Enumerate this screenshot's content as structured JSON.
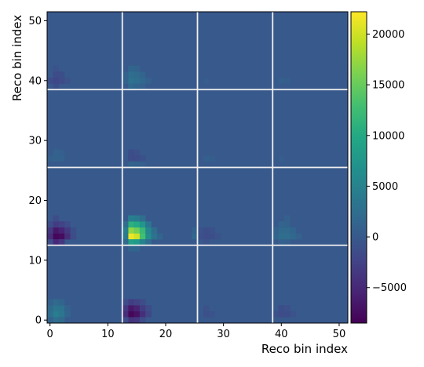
{
  "chart_data": {
    "type": "heatmap",
    "xlabel": "Reco bin index",
    "ylabel": "Reco bin index",
    "xlim": [
      -0.5,
      51.5
    ],
    "ylim": [
      -0.5,
      51.5
    ],
    "x_ticks": [
      0,
      10,
      20,
      30,
      40,
      50
    ],
    "y_ticks": [
      0,
      10,
      20,
      30,
      40,
      50
    ],
    "block_boundaries": [
      12.5,
      25.5,
      38.5
    ],
    "grid_line_color": "#f0f0f0",
    "colormap": "viridis",
    "background_value": 0,
    "colorbar": {
      "range": [
        -8500,
        22200
      ],
      "ticks": [
        -5000,
        0,
        5000,
        10000,
        15000,
        20000
      ]
    },
    "cells": [
      {
        "x": 14,
        "y": 14,
        "v": 21500
      },
      {
        "x": 15,
        "y": 14,
        "v": 20000
      },
      {
        "x": 14,
        "y": 15,
        "v": 17000
      },
      {
        "x": 15,
        "y": 15,
        "v": 15500
      },
      {
        "x": 16,
        "y": 14,
        "v": 13000
      },
      {
        "x": 16,
        "y": 15,
        "v": 12000
      },
      {
        "x": 14,
        "y": 16,
        "v": 11000
      },
      {
        "x": 15,
        "y": 16,
        "v": 10000
      },
      {
        "x": 14,
        "y": 13,
        "v": 9000
      },
      {
        "x": 15,
        "y": 13,
        "v": 8000
      },
      {
        "x": 16,
        "y": 16,
        "v": 7500
      },
      {
        "x": 17,
        "y": 14,
        "v": 6500
      },
      {
        "x": 17,
        "y": 15,
        "v": 5500
      },
      {
        "x": 16,
        "y": 13,
        "v": 5000
      },
      {
        "x": 13,
        "y": 15,
        "v": 4500
      },
      {
        "x": 13,
        "y": 14,
        "v": 4000
      },
      {
        "x": 14,
        "y": 17,
        "v": 4500
      },
      {
        "x": 15,
        "y": 17,
        "v": 4000
      },
      {
        "x": 17,
        "y": 16,
        "v": 3500
      },
      {
        "x": 18,
        "y": 14,
        "v": 3000
      },
      {
        "x": 18,
        "y": 15,
        "v": 2500
      },
      {
        "x": 13,
        "y": 16,
        "v": 2500
      },
      {
        "x": 16,
        "y": 17,
        "v": 2500
      },
      {
        "x": 17,
        "y": 13,
        "v": 2500
      },
      {
        "x": 13,
        "y": 13,
        "v": 2000
      },
      {
        "x": 14,
        "y": 12,
        "v": 1500
      },
      {
        "x": 15,
        "y": 12,
        "v": 1500
      },
      {
        "x": 19,
        "y": 14,
        "v": 1500
      },
      {
        "x": 1,
        "y": 14,
        "v": -8000
      },
      {
        "x": 2,
        "y": 14,
        "v": -7500
      },
      {
        "x": 1,
        "y": 15,
        "v": -6500
      },
      {
        "x": 2,
        "y": 15,
        "v": -5500
      },
      {
        "x": 1,
        "y": 13,
        "v": -5000
      },
      {
        "x": 0,
        "y": 14,
        "v": -4500
      },
      {
        "x": 3,
        "y": 14,
        "v": -4500
      },
      {
        "x": 0,
        "y": 15,
        "v": -3500
      },
      {
        "x": 3,
        "y": 15,
        "v": -3500
      },
      {
        "x": 2,
        "y": 13,
        "v": -3500
      },
      {
        "x": 1,
        "y": 16,
        "v": -3000
      },
      {
        "x": 2,
        "y": 16,
        "v": -2500
      },
      {
        "x": 1,
        "y": 17,
        "v": -1500
      },
      {
        "x": 0,
        "y": 16,
        "v": -1500
      },
      {
        "x": 3,
        "y": 16,
        "v": -1500
      },
      {
        "x": 4,
        "y": 14,
        "v": -1500
      },
      {
        "x": 4,
        "y": 15,
        "v": -1200
      },
      {
        "x": 0,
        "y": 13,
        "v": -1500
      },
      {
        "x": 14,
        "y": 1,
        "v": -8000
      },
      {
        "x": 15,
        "y": 1,
        "v": -7000
      },
      {
        "x": 14,
        "y": 2,
        "v": -6500
      },
      {
        "x": 15,
        "y": 2,
        "v": -5500
      },
      {
        "x": 13,
        "y": 1,
        "v": -4500
      },
      {
        "x": 16,
        "y": 1,
        "v": -4500
      },
      {
        "x": 14,
        "y": 0,
        "v": -4000
      },
      {
        "x": 15,
        "y": 0,
        "v": -3500
      },
      {
        "x": 13,
        "y": 2,
        "v": -3500
      },
      {
        "x": 16,
        "y": 2,
        "v": -3000
      },
      {
        "x": 14,
        "y": 3,
        "v": -3000
      },
      {
        "x": 15,
        "y": 3,
        "v": -2500
      },
      {
        "x": 17,
        "y": 1,
        "v": -2000
      },
      {
        "x": 17,
        "y": 2,
        "v": -1500
      },
      {
        "x": 13,
        "y": 0,
        "v": -1500
      },
      {
        "x": 16,
        "y": 0,
        "v": -1500
      },
      {
        "x": 16,
        "y": 3,
        "v": -1500
      },
      {
        "x": 13,
        "y": 3,
        "v": -1500
      },
      {
        "x": 1,
        "y": 1,
        "v": 4500
      },
      {
        "x": 1,
        "y": 2,
        "v": 3500
      },
      {
        "x": 2,
        "y": 1,
        "v": 3500
      },
      {
        "x": 2,
        "y": 2,
        "v": 3000
      },
      {
        "x": 0,
        "y": 1,
        "v": 2500
      },
      {
        "x": 1,
        "y": 0,
        "v": 2500
      },
      {
        "x": 0,
        "y": 2,
        "v": 2000
      },
      {
        "x": 2,
        "y": 0,
        "v": 2000
      },
      {
        "x": 1,
        "y": 3,
        "v": 2000
      },
      {
        "x": 2,
        "y": 3,
        "v": 1500
      },
      {
        "x": 3,
        "y": 1,
        "v": 1500
      },
      {
        "x": 3,
        "y": 2,
        "v": 1200
      },
      {
        "x": 0,
        "y": 0,
        "v": 1200
      },
      {
        "x": 0,
        "y": 3,
        "v": 1000
      },
      {
        "x": 14,
        "y": 40,
        "v": 3000
      },
      {
        "x": 15,
        "y": 40,
        "v": 2500
      },
      {
        "x": 14,
        "y": 41,
        "v": 2500
      },
      {
        "x": 15,
        "y": 41,
        "v": 2000
      },
      {
        "x": 16,
        "y": 40,
        "v": 1800
      },
      {
        "x": 16,
        "y": 41,
        "v": 1500
      },
      {
        "x": 14,
        "y": 39,
        "v": 1800
      },
      {
        "x": 15,
        "y": 39,
        "v": 1500
      },
      {
        "x": 14,
        "y": 42,
        "v": 1500
      },
      {
        "x": 15,
        "y": 42,
        "v": 1200
      },
      {
        "x": 13,
        "y": 40,
        "v": 1200
      },
      {
        "x": 13,
        "y": 41,
        "v": 1000
      },
      {
        "x": 17,
        "y": 40,
        "v": 1000
      },
      {
        "x": 16,
        "y": 39,
        "v": 1000
      },
      {
        "x": 1,
        "y": 40,
        "v": -2000
      },
      {
        "x": 2,
        "y": 40,
        "v": -1500
      },
      {
        "x": 1,
        "y": 41,
        "v": -1500
      },
      {
        "x": 2,
        "y": 41,
        "v": -1200
      },
      {
        "x": 0,
        "y": 40,
        "v": -1200
      },
      {
        "x": 1,
        "y": 39,
        "v": -1200
      },
      {
        "x": 3,
        "y": 40,
        "v": -800
      },
      {
        "x": 1,
        "y": 42,
        "v": -800
      },
      {
        "x": 14,
        "y": 27,
        "v": -1500
      },
      {
        "x": 15,
        "y": 27,
        "v": -1300
      },
      {
        "x": 14,
        "y": 28,
        "v": -1200
      },
      {
        "x": 15,
        "y": 28,
        "v": -1000
      },
      {
        "x": 16,
        "y": 27,
        "v": -900
      },
      {
        "x": 14,
        "y": 26,
        "v": 1200
      },
      {
        "x": 15,
        "y": 26,
        "v": 1000
      },
      {
        "x": 16,
        "y": 26,
        "v": 700
      },
      {
        "x": 1,
        "y": 27,
        "v": 1200
      },
      {
        "x": 1,
        "y": 28,
        "v": 1000
      },
      {
        "x": 2,
        "y": 27,
        "v": 900
      },
      {
        "x": 0,
        "y": 27,
        "v": 800
      },
      {
        "x": 2,
        "y": 28,
        "v": 700
      },
      {
        "x": 40,
        "y": 14,
        "v": 2500
      },
      {
        "x": 41,
        "y": 14,
        "v": 2500
      },
      {
        "x": 40,
        "y": 15,
        "v": 2000
      },
      {
        "x": 41,
        "y": 15,
        "v": 2000
      },
      {
        "x": 42,
        "y": 14,
        "v": 1800
      },
      {
        "x": 42,
        "y": 15,
        "v": 1500
      },
      {
        "x": 39,
        "y": 14,
        "v": 1500
      },
      {
        "x": 39,
        "y": 15,
        "v": 1200
      },
      {
        "x": 40,
        "y": 16,
        "v": 1300
      },
      {
        "x": 41,
        "y": 16,
        "v": 1200
      },
      {
        "x": 43,
        "y": 14,
        "v": 1000
      },
      {
        "x": 40,
        "y": 13,
        "v": 1000
      },
      {
        "x": 41,
        "y": 17,
        "v": 800
      },
      {
        "x": 41,
        "y": 13,
        "v": 800
      },
      {
        "x": 27,
        "y": 14,
        "v": -1500
      },
      {
        "x": 28,
        "y": 14,
        "v": -1200
      },
      {
        "x": 27,
        "y": 15,
        "v": -1200
      },
      {
        "x": 28,
        "y": 15,
        "v": -1000
      },
      {
        "x": 26,
        "y": 14,
        "v": -1000
      },
      {
        "x": 29,
        "y": 14,
        "v": -800
      },
      {
        "x": 26,
        "y": 15,
        "v": -800
      },
      {
        "x": 27,
        "y": 13,
        "v": -800
      },
      {
        "x": 25,
        "y": 14,
        "v": 1800
      },
      {
        "x": 25,
        "y": 15,
        "v": 1200
      },
      {
        "x": 40,
        "y": 1,
        "v": -1500
      },
      {
        "x": 41,
        "y": 1,
        "v": -1200
      },
      {
        "x": 40,
        "y": 2,
        "v": -1200
      },
      {
        "x": 41,
        "y": 2,
        "v": -1000
      },
      {
        "x": 39,
        "y": 1,
        "v": -900
      },
      {
        "x": 42,
        "y": 1,
        "v": -800
      },
      {
        "x": 27,
        "y": 1,
        "v": -900
      },
      {
        "x": 28,
        "y": 1,
        "v": -700
      },
      {
        "x": 27,
        "y": 2,
        "v": -700
      },
      {
        "x": 40,
        "y": 40,
        "v": 700
      },
      {
        "x": 41,
        "y": 40,
        "v": 600
      },
      {
        "x": 27,
        "y": 27,
        "v": 700
      },
      {
        "x": 28,
        "y": 27,
        "v": 600
      },
      {
        "x": 27,
        "y": 40,
        "v": 500
      },
      {
        "x": 40,
        "y": 27,
        "v": 500
      }
    ]
  }
}
